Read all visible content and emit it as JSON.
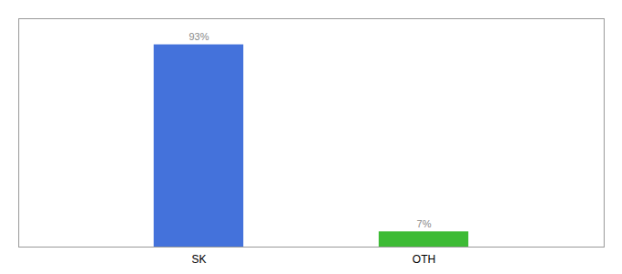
{
  "chart_data": {
    "type": "bar",
    "categories": [
      "SK",
      "OTH"
    ],
    "values": [
      93,
      7
    ],
    "value_labels": [
      "93%",
      "7%"
    ],
    "colors": [
      "#4472db",
      "#3dbb35"
    ],
    "ylim": [
      0,
      105
    ],
    "data_labels": true,
    "tick_labels": "x"
  }
}
